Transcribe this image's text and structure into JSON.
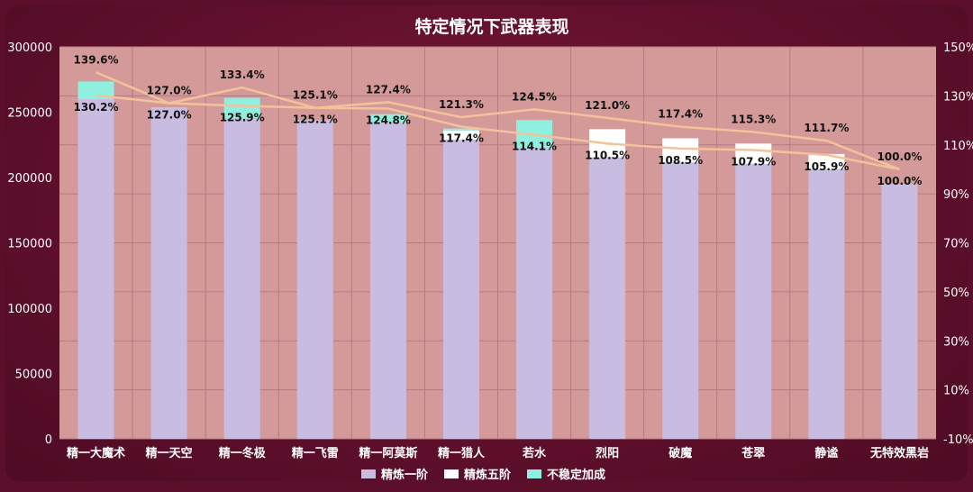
{
  "chart_data": {
    "type": "bar",
    "title": "特定情况下武器表现",
    "categories": [
      "精一大魔术",
      "精一天空",
      "精一冬极",
      "精一飞雷",
      "精一阿莫斯",
      "精一猎人",
      "若水",
      "烈阳",
      "破魔",
      "苍翠",
      "静谧",
      "无特效黑岩"
    ],
    "stacked": true,
    "series": [
      {
        "name": "精炼一阶",
        "type": "bar",
        "axis": "left",
        "color": "#c8bde0",
        "values": [
          260000,
          253800,
          245500,
          244000,
          242000,
          229000,
          222500,
          215500,
          211500,
          210500,
          206500,
          195000
        ]
      },
      {
        "name": "精炼五阶",
        "type": "bar",
        "axis": "left",
        "color": "#ffffff",
        "values": [
          0,
          0,
          0,
          0,
          0,
          7000,
          0,
          21500,
          18500,
          15500,
          11500,
          0
        ]
      },
      {
        "name": "不稳定加成",
        "type": "bar",
        "axis": "left",
        "color": "#8ff0e0",
        "values": [
          13500,
          0,
          15500,
          0,
          6500,
          1500,
          21500,
          0,
          0,
          0,
          0,
          0
        ]
      },
      {
        "name": "",
        "type": "line",
        "axis": "right",
        "color": "#f2c29a",
        "values": [
          139.6,
          127.0,
          133.4,
          125.1,
          127.4,
          121.3,
          124.5,
          121.0,
          117.4,
          115.3,
          111.7,
          100.0
        ],
        "labels": [
          "139.6%",
          "127.0%",
          "133.4%",
          "125.1%",
          "127.4%",
          "121.3%",
          "124.5%",
          "121.0%",
          "117.4%",
          "115.3%",
          "111.7%",
          "100.0%"
        ]
      },
      {
        "name": "",
        "type": "line",
        "axis": "right",
        "color": "#f2c29a",
        "values": [
          130.2,
          127.0,
          125.9,
          125.1,
          124.8,
          117.4,
          114.1,
          110.5,
          108.5,
          107.9,
          105.9,
          100.0
        ],
        "labels": [
          "130.2%",
          "127.0%",
          "125.9%",
          "125.1%",
          "124.8%",
          "117.4%",
          "114.1%",
          "110.5%",
          "108.5%",
          "107.9%",
          "105.9%",
          "100.0%"
        ]
      }
    ],
    "ylim": [
      0,
      300000
    ],
    "yticks": [
      "0",
      "50000",
      "100000",
      "150000",
      "200000",
      "250000",
      "300000"
    ],
    "y2lim": [
      -10,
      150
    ],
    "y2ticks": [
      "-10%",
      "10%",
      "30%",
      "50%",
      "70%",
      "90%",
      "110%",
      "130%",
      "150%"
    ],
    "legend_position": "bottom",
    "grid": true,
    "plot_background": "#d49a9a"
  }
}
